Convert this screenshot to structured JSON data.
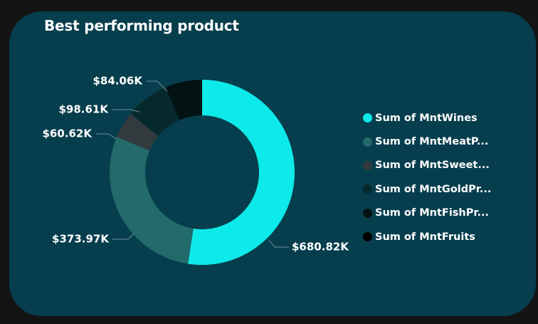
{
  "card": {
    "title": "Best performing product"
  },
  "chart_data": {
    "type": "donut",
    "title": "Best performing product",
    "series": [
      {
        "name": "Sum of MntWines",
        "legend_label": "Sum of MntWines",
        "value": 680.82,
        "value_label": "$680.82K",
        "color": "#0ee9e9"
      },
      {
        "name": "Sum of MntMeatProducts",
        "legend_label": "Sum of MntMeatP...",
        "value": 373.97,
        "value_label": "$373.97K",
        "color": "#236a6a"
      },
      {
        "name": "Sum of MntSweetProducts",
        "legend_label": "Sum of MntSweet...",
        "value": 60.62,
        "value_label": "$60.62K",
        "color": "#323a3d"
      },
      {
        "name": "Sum of MntGoldProds",
        "legend_label": "Sum of MntGoldPr...",
        "value": 98.61,
        "value_label": "$98.61K",
        "color": "#062a2c"
      },
      {
        "name": "Sum of MntFishProducts",
        "legend_label": "Sum of MntFishPr...",
        "value": 84.06,
        "value_label": "$84.06K",
        "color": "#031213"
      },
      {
        "name": "Sum of MntFruits",
        "legend_label": "Sum of MntFruits",
        "value": 0,
        "value_label": "",
        "color": "#000000"
      }
    ],
    "start": "12 o'clock",
    "direction": "clockwise",
    "legend_position": "right",
    "units": "K"
  }
}
